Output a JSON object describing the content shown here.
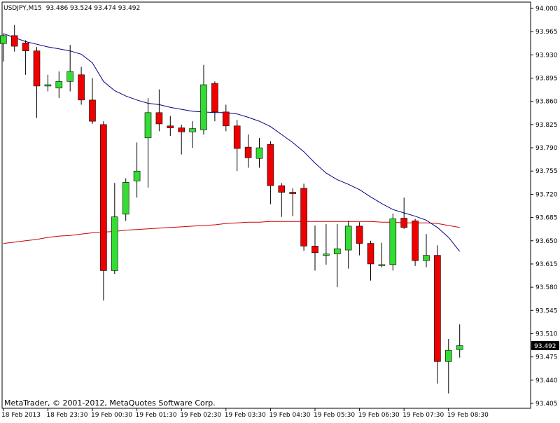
{
  "header": {
    "symbol": "USDJPY,M15",
    "ohlc": "93.486 93.524 93.474 93.492"
  },
  "footer": {
    "copyright": "MetaTrader, © 2001-2012, MetaQuotes Software Corp."
  },
  "colors": {
    "bull": "#33dd33",
    "bear": "#ee0000",
    "wick": "#000000",
    "ma_fast": "#000080",
    "ma_slow": "#cc0000",
    "price_tag_bg": "#000000",
    "price_tag_fg": "#ffffff"
  },
  "chart_data": {
    "type": "candlestick",
    "instrument": "USDJPY",
    "timeframe": "M15",
    "ylim": [
      93.42,
      94.0
    ],
    "y_ticks": [
      "94.000",
      "93.965",
      "93.930",
      "93.895",
      "93.860",
      "93.825",
      "93.790",
      "93.755",
      "93.720",
      "93.685",
      "93.650",
      "93.615",
      "93.580",
      "93.545",
      "93.510",
      "93.475",
      "93.440",
      "93.405"
    ],
    "x_ticks": [
      "18 Feb 2013",
      "18 Feb 23:30",
      "19 Feb 00:30",
      "19 Feb 01:30",
      "19 Feb 02:30",
      "19 Feb 03:30",
      "19 Feb 04:30",
      "19 Feb 05:30",
      "19 Feb 06:30",
      "19 Feb 07:30",
      "19 Feb 08:30"
    ],
    "last_price_label": "93.492",
    "last_price": 93.492,
    "candles": [
      {
        "o": 93.947,
        "h": 93.962,
        "l": 93.92,
        "c": 93.959
      },
      {
        "o": 93.959,
        "h": 93.975,
        "l": 93.935,
        "c": 93.943
      },
      {
        "o": 93.948,
        "h": 93.952,
        "l": 93.9,
        "c": 93.936
      },
      {
        "o": 93.936,
        "h": 93.942,
        "l": 93.835,
        "c": 93.883
      },
      {
        "o": 93.883,
        "h": 93.9,
        "l": 93.875,
        "c": 93.885
      },
      {
        "o": 93.88,
        "h": 93.905,
        "l": 93.865,
        "c": 93.89
      },
      {
        "o": 93.89,
        "h": 93.945,
        "l": 93.875,
        "c": 93.905
      },
      {
        "o": 93.9,
        "h": 93.912,
        "l": 93.855,
        "c": 93.862
      },
      {
        "o": 93.862,
        "h": 93.895,
        "l": 93.826,
        "c": 93.83
      },
      {
        "o": 93.825,
        "h": 93.83,
        "l": 93.56,
        "c": 93.605
      },
      {
        "o": 93.605,
        "h": 93.737,
        "l": 93.6,
        "c": 93.686
      },
      {
        "o": 93.69,
        "h": 93.744,
        "l": 93.68,
        "c": 93.738
      },
      {
        "o": 93.74,
        "h": 93.798,
        "l": 93.715,
        "c": 93.755
      },
      {
        "o": 93.805,
        "h": 93.865,
        "l": 93.73,
        "c": 93.843
      },
      {
        "o": 93.843,
        "h": 93.878,
        "l": 93.815,
        "c": 93.826
      },
      {
        "o": 93.823,
        "h": 93.838,
        "l": 93.808,
        "c": 93.82
      },
      {
        "o": 93.82,
        "h": 93.825,
        "l": 93.78,
        "c": 93.814
      },
      {
        "o": 93.814,
        "h": 93.83,
        "l": 93.79,
        "c": 93.819
      },
      {
        "o": 93.817,
        "h": 93.915,
        "l": 93.81,
        "c": 93.885
      },
      {
        "o": 93.887,
        "h": 93.89,
        "l": 93.83,
        "c": 93.844
      },
      {
        "o": 93.844,
        "h": 93.855,
        "l": 93.815,
        "c": 93.823
      },
      {
        "o": 93.823,
        "h": 93.832,
        "l": 93.755,
        "c": 93.789
      },
      {
        "o": 93.791,
        "h": 93.81,
        "l": 93.76,
        "c": 93.775
      },
      {
        "o": 93.774,
        "h": 93.805,
        "l": 93.76,
        "c": 93.79
      },
      {
        "o": 93.795,
        "h": 93.8,
        "l": 93.705,
        "c": 93.733
      },
      {
        "o": 93.733,
        "h": 93.737,
        "l": 93.686,
        "c": 93.723
      },
      {
        "o": 93.723,
        "h": 93.729,
        "l": 93.687,
        "c": 93.721
      },
      {
        "o": 93.729,
        "h": 93.736,
        "l": 93.635,
        "c": 93.642
      },
      {
        "o": 93.642,
        "h": 93.673,
        "l": 93.605,
        "c": 93.632
      },
      {
        "o": 93.628,
        "h": 93.675,
        "l": 93.614,
        "c": 93.63
      },
      {
        "o": 93.63,
        "h": 93.675,
        "l": 93.58,
        "c": 93.638
      },
      {
        "o": 93.636,
        "h": 93.68,
        "l": 93.608,
        "c": 93.672
      },
      {
        "o": 93.672,
        "h": 93.678,
        "l": 93.628,
        "c": 93.646
      },
      {
        "o": 93.646,
        "h": 93.65,
        "l": 93.59,
        "c": 93.615
      },
      {
        "o": 93.613,
        "h": 93.647,
        "l": 93.61,
        "c": 93.614
      },
      {
        "o": 93.614,
        "h": 93.691,
        "l": 93.605,
        "c": 93.683
      },
      {
        "o": 93.684,
        "h": 93.715,
        "l": 93.668,
        "c": 93.67
      },
      {
        "o": 93.68,
        "h": 93.683,
        "l": 93.612,
        "c": 93.62
      },
      {
        "o": 93.62,
        "h": 93.66,
        "l": 93.61,
        "c": 93.628
      },
      {
        "o": 93.628,
        "h": 93.643,
        "l": 93.435,
        "c": 93.468
      },
      {
        "o": 93.468,
        "h": 93.502,
        "l": 93.42,
        "c": 93.485
      },
      {
        "o": 93.486,
        "h": 93.524,
        "l": 93.474,
        "c": 93.492
      }
    ],
    "ma_fast": [
      93.962,
      93.956,
      93.95,
      93.946,
      93.942,
      93.939,
      93.936,
      93.931,
      93.918,
      93.89,
      93.876,
      93.868,
      93.862,
      93.857,
      93.855,
      93.851,
      93.848,
      93.845,
      93.844,
      93.843,
      93.843,
      93.841,
      93.836,
      93.83,
      93.822,
      93.81,
      93.798,
      93.784,
      93.767,
      93.752,
      93.742,
      93.735,
      93.727,
      93.716,
      93.706,
      93.697,
      93.692,
      93.687,
      93.681,
      93.67,
      93.655,
      93.634
    ],
    "ma_slow": [
      93.646,
      93.648,
      93.65,
      93.652,
      93.655,
      93.657,
      93.658,
      93.66,
      93.662,
      93.663,
      93.664,
      93.666,
      93.667,
      93.668,
      93.669,
      93.67,
      93.671,
      93.672,
      93.673,
      93.674,
      93.676,
      93.677,
      93.678,
      93.678,
      93.679,
      93.679,
      93.679,
      93.679,
      93.679,
      93.679,
      93.679,
      93.679,
      93.679,
      93.679,
      93.678,
      93.678,
      93.677,
      93.677,
      93.677,
      93.676,
      93.673,
      93.67
    ]
  }
}
